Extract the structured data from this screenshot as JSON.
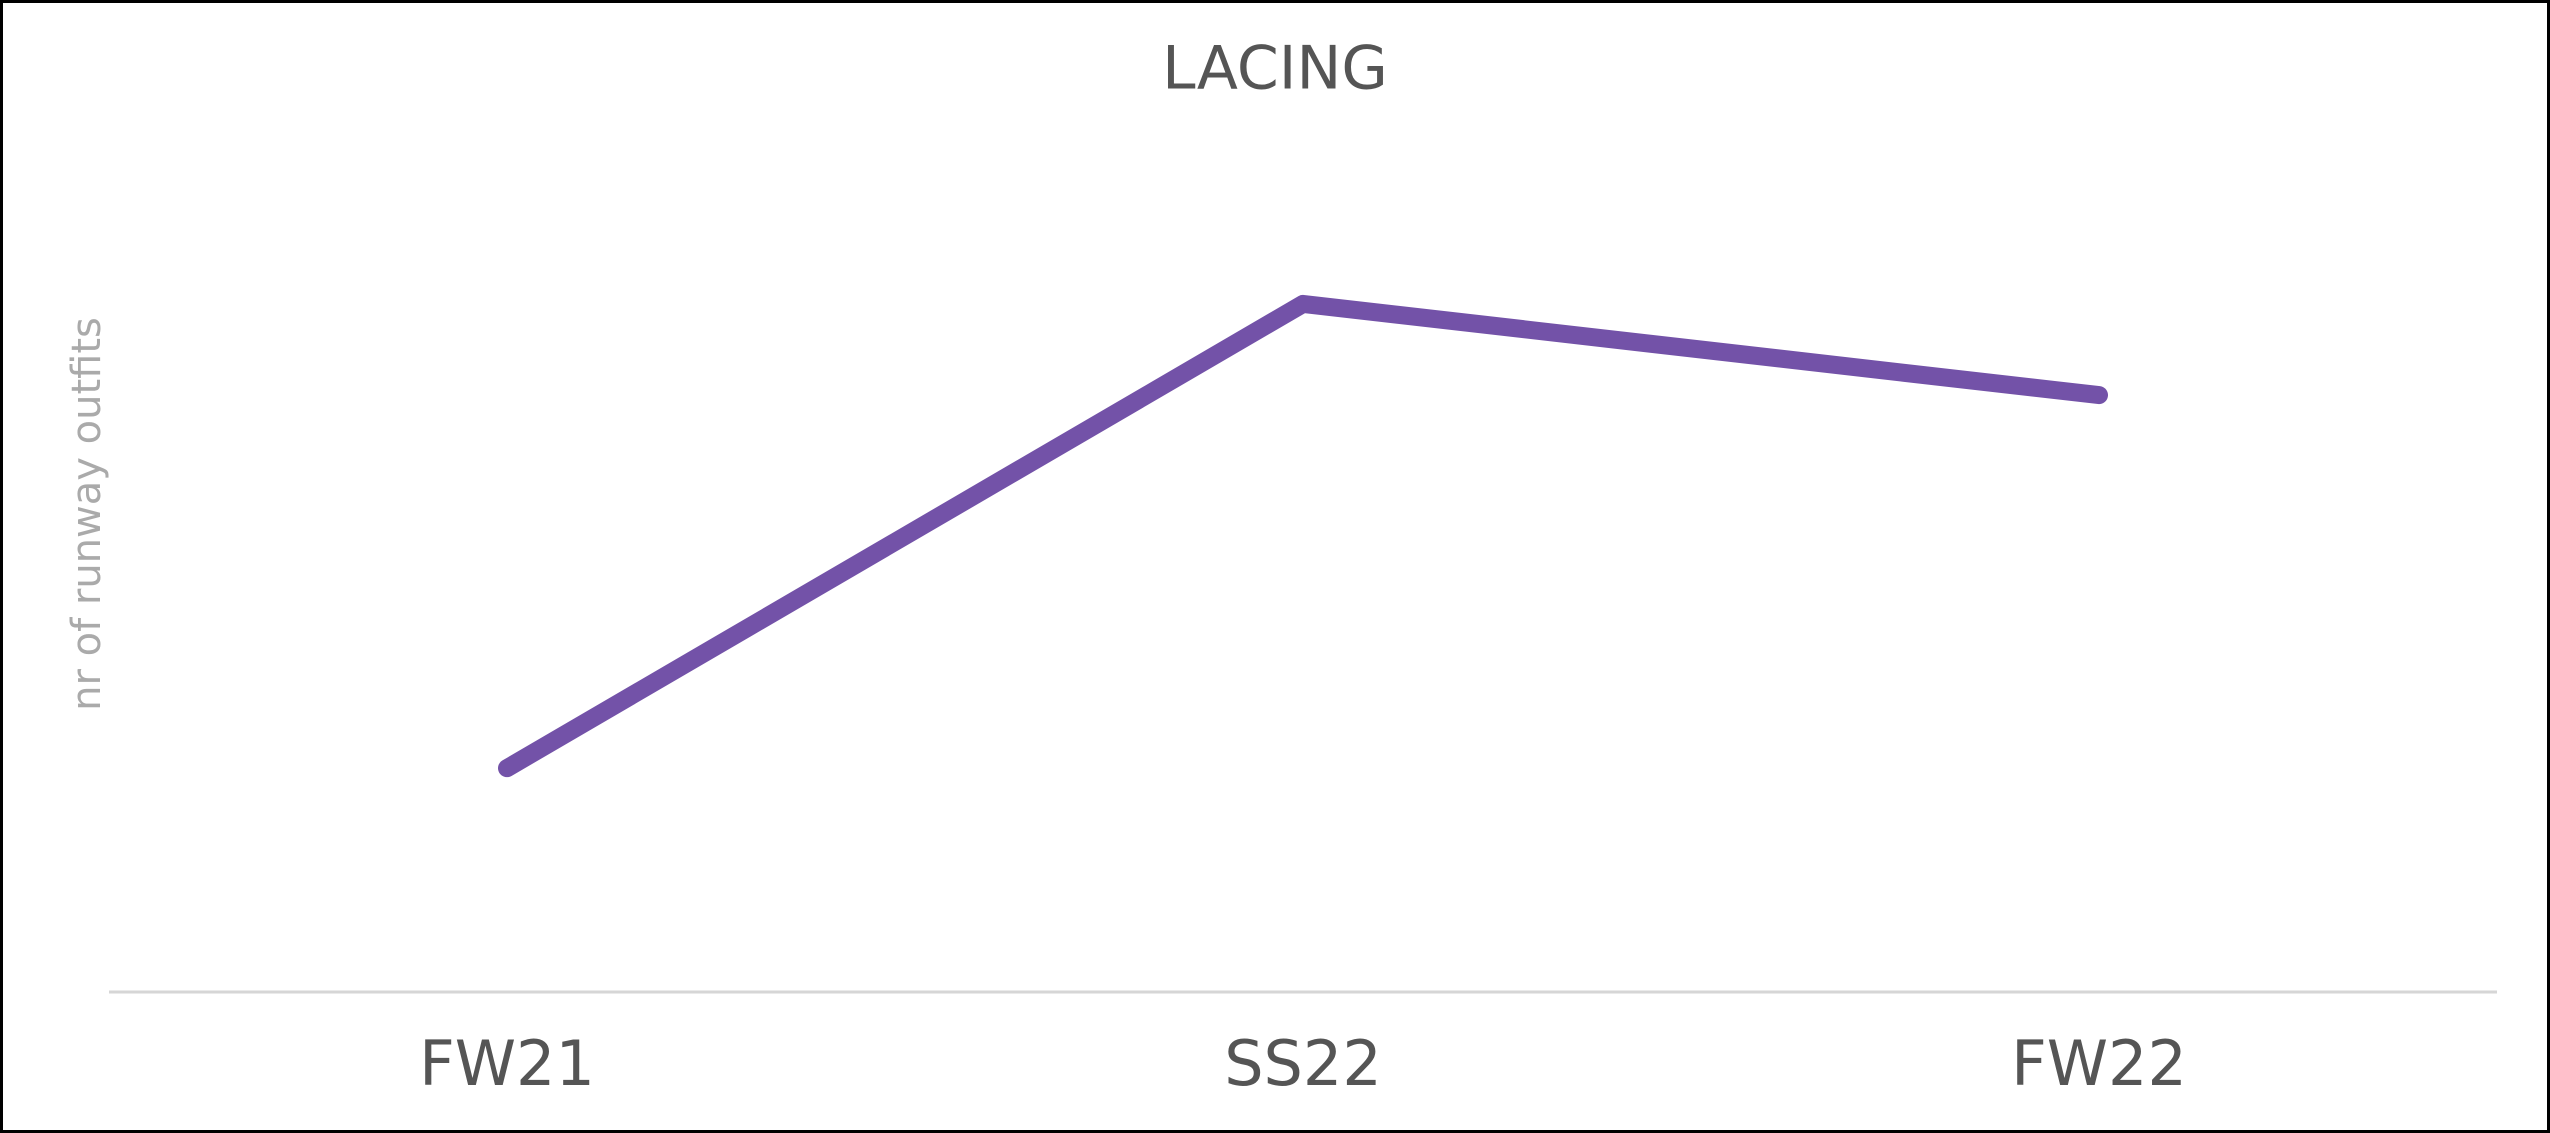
{
  "chart_data": {
    "type": "line",
    "title": "LACING",
    "y_label": "nr of runway outfits",
    "categories": [
      "FW21",
      "SS22",
      "FW22"
    ],
    "series": [
      {
        "name": "LACING",
        "color": "#7352a8",
        "values": [
          27,
          83,
          72
        ]
      }
    ],
    "ylim": [
      0,
      100
    ],
    "grid": false
  }
}
